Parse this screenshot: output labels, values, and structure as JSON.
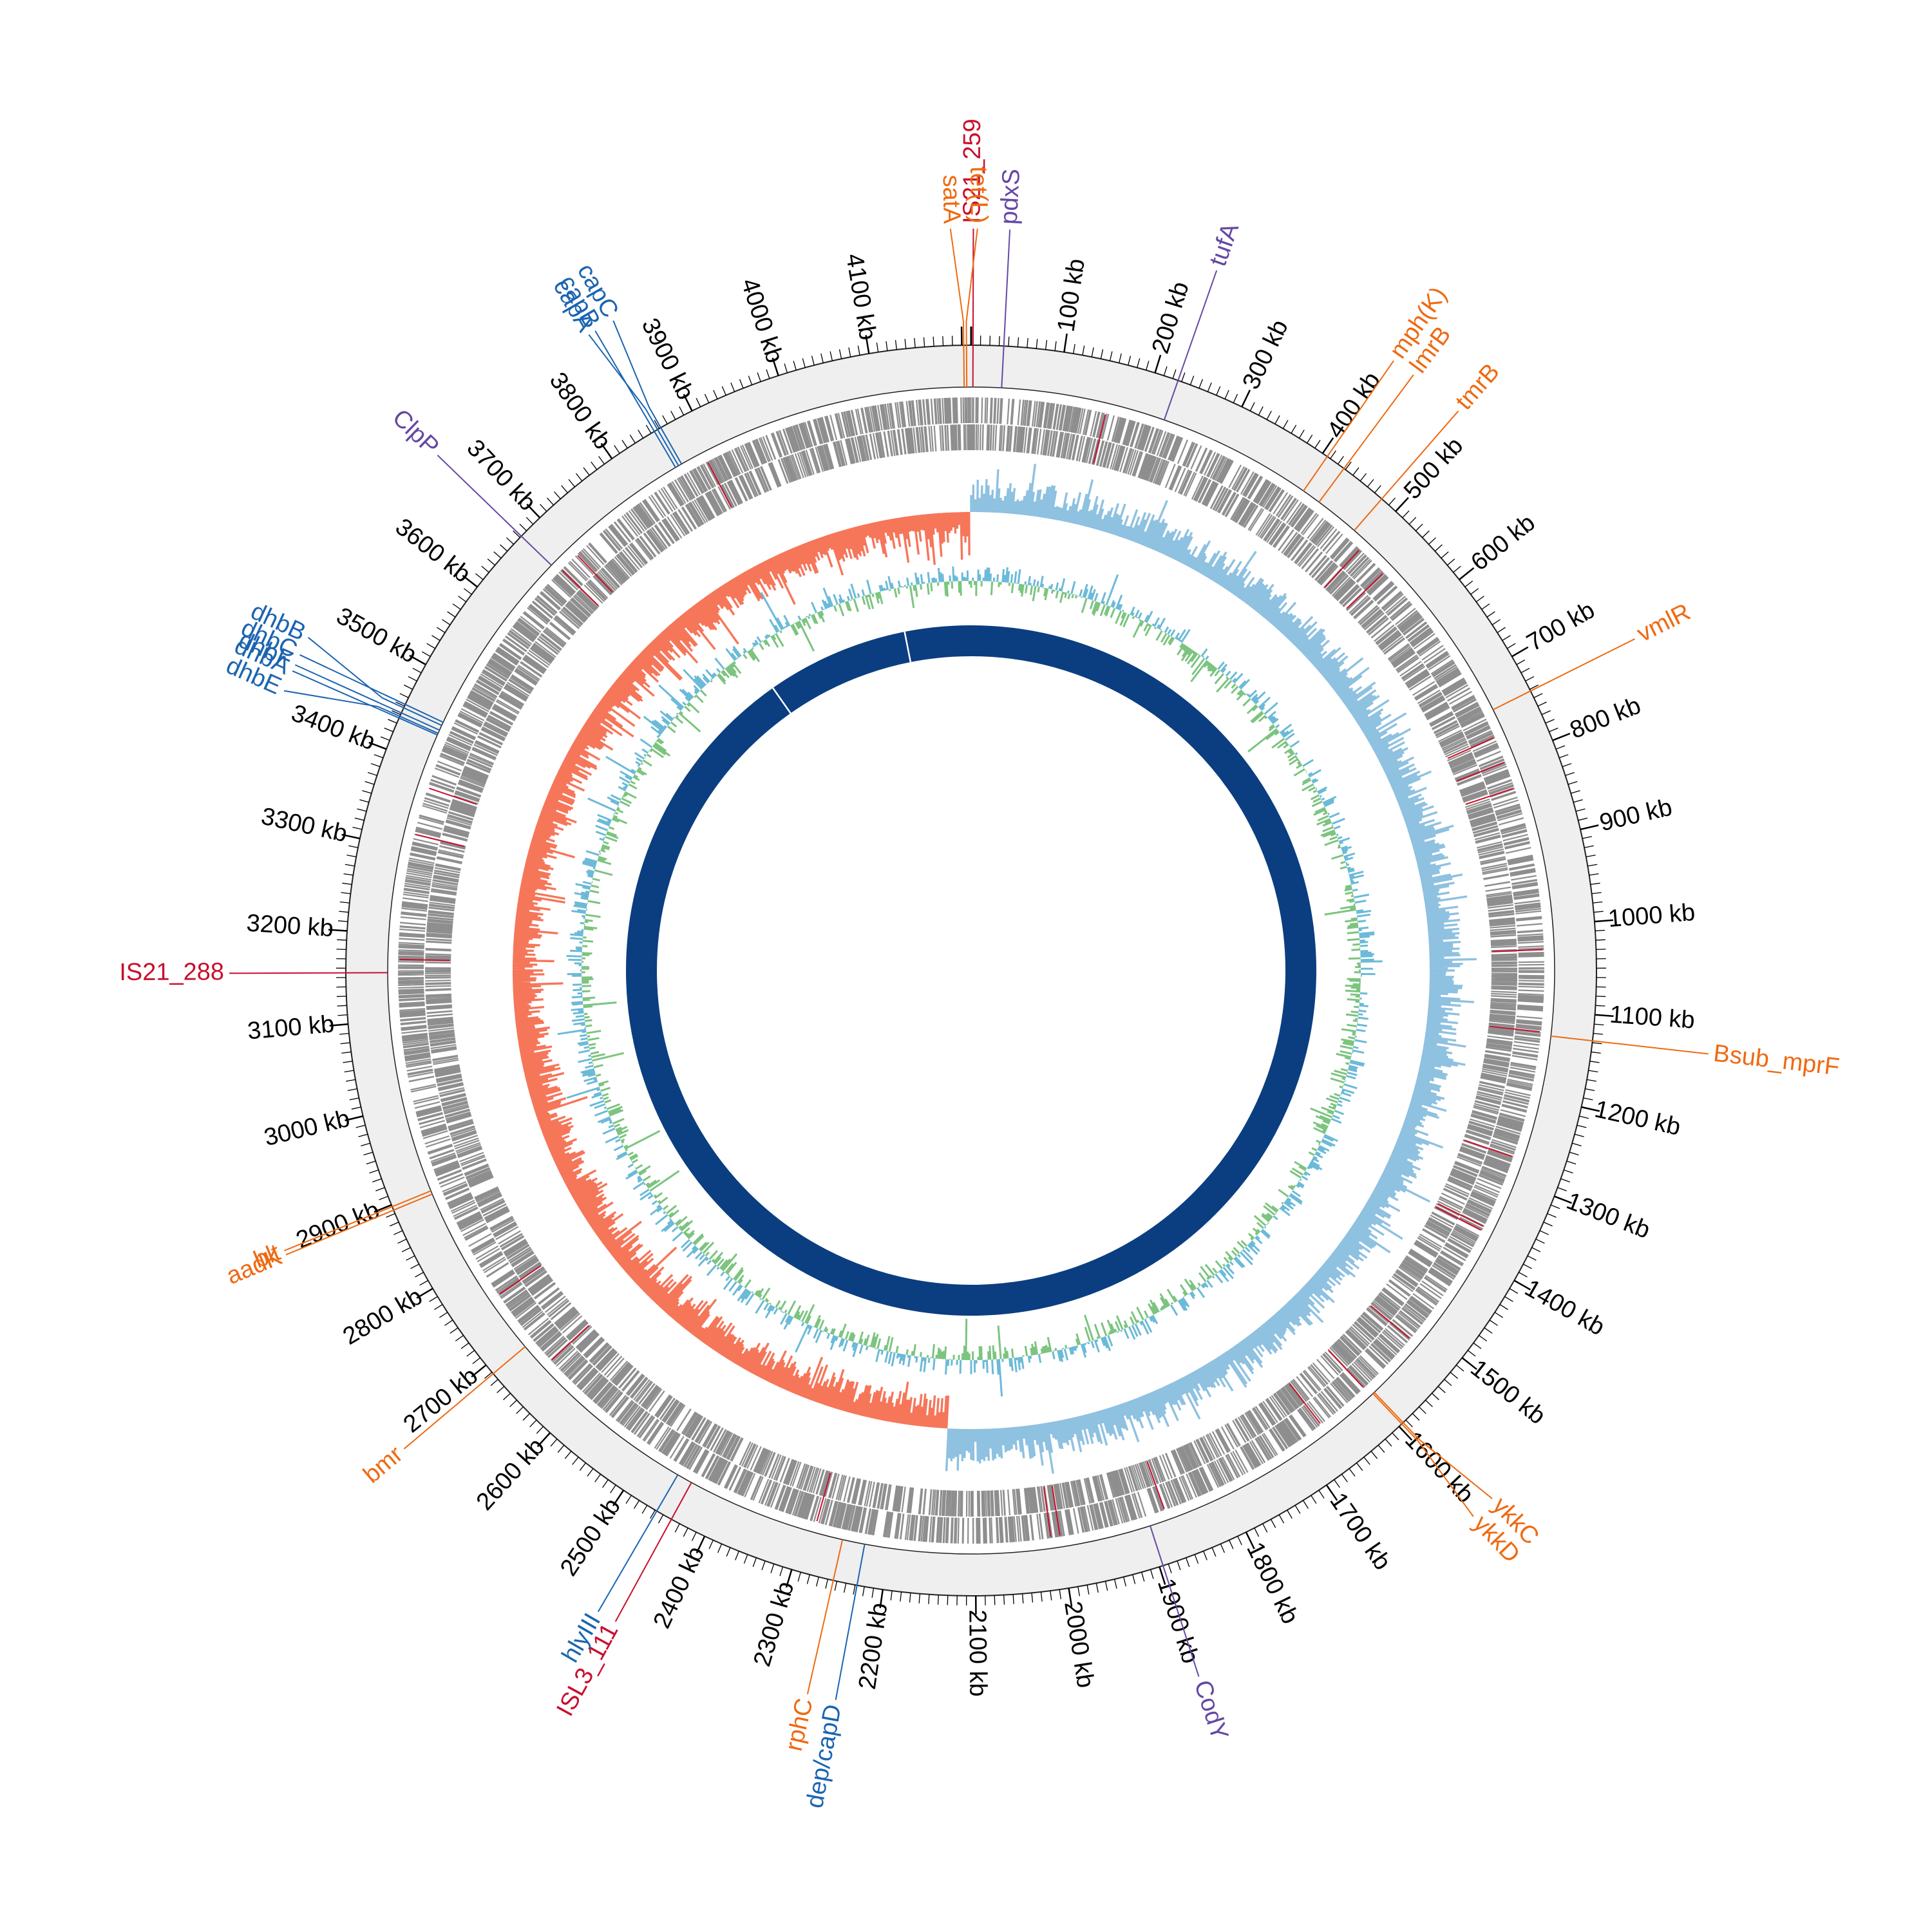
{
  "map": {
    "genome_length_kb": 4210,
    "tick_labels": [
      "100 kb",
      "200 kb",
      "300 kb",
      "400 kb",
      "500 kb",
      "600 kb",
      "700 kb",
      "800 kb",
      "900 kb",
      "1000 kb",
      "1100 kb",
      "1200 kb",
      "1300 kb",
      "1400 kb",
      "1500 kb",
      "1600 kb",
      "1700 kb",
      "1800 kb",
      "1900 kb",
      "2000 kb",
      "2100 kb",
      "2200 kb",
      "2300 kb",
      "2400 kb",
      "2500 kb",
      "2600 kb",
      "2700 kb",
      "2800 kb",
      "2900 kb",
      "3000 kb",
      "3100 kb",
      "3200 kb",
      "3300 kb",
      "3400 kb",
      "3500 kb",
      "3600 kb",
      "3700 kb",
      "3800 kb",
      "3900 kb",
      "4000 kb",
      "4100 kb"
    ],
    "colors": {
      "arg": "#ee6a12",
      "virulence": "#1b64b0",
      "mobile_element": "#c8102e",
      "regulator": "#6548a3",
      "gc_skew_positive": "#8fc1e0",
      "gc_skew_negative": "#f6765a",
      "gc_content_high": "#6cbad8",
      "gc_content_low": "#7cc47f",
      "cds": "#8e8e8e",
      "core_ring": "#0b3e80",
      "backbone": "#efefef"
    },
    "features": [
      {
        "label": "satA",
        "kb": 4202,
        "category": "arg"
      },
      {
        "label": "tet(L)",
        "kb": 4205,
        "category": "arg"
      },
      {
        "label": "IS21_259",
        "kb": 2,
        "category": "mobile_element"
      },
      {
        "label": "pdxS",
        "kb": 35,
        "category": "regulator"
      },
      {
        "label": "tufA",
        "kb": 226,
        "category": "regulator"
      },
      {
        "label": "mph(K)",
        "kb": 406,
        "category": "arg"
      },
      {
        "label": "lmrB",
        "kb": 428,
        "category": "arg"
      },
      {
        "label": "tmrB",
        "kb": 480,
        "category": "arg"
      },
      {
        "label": "vmlR",
        "kb": 742,
        "category": "arg"
      },
      {
        "label": "Bsub_mprF",
        "kb": 1128,
        "category": "arg"
      },
      {
        "label": "ykkC",
        "kb": 1594,
        "category": "arg"
      },
      {
        "label": "ykkD",
        "kb": 1596,
        "category": "arg"
      },
      {
        "label": "CodY",
        "kb": 1896,
        "category": "regulator"
      },
      {
        "label": "dep/capD",
        "kb": 2228,
        "category": "virulence"
      },
      {
        "label": "rphC",
        "kb": 2254,
        "category": "arg"
      },
      {
        "label": "ISL3_111",
        "kb": 2440,
        "category": "mobile_element"
      },
      {
        "label": "hlyIII",
        "kb": 2458,
        "category": "virulence"
      },
      {
        "label": "bmr",
        "kb": 2688,
        "category": "arg"
      },
      {
        "label": "aadK",
        "kb": 2894,
        "category": "arg"
      },
      {
        "label": "blt",
        "kb": 2898,
        "category": "arg"
      },
      {
        "label": "IS21_288",
        "kb": 3155,
        "category": "mobile_element"
      },
      {
        "label": "dhbA",
        "kb": 3436,
        "category": "virulence"
      },
      {
        "label": "dhbE",
        "kb": 3438,
        "category": "virulence"
      },
      {
        "label": "dhbF",
        "kb": 3442,
        "category": "virulence"
      },
      {
        "label": "dhbB",
        "kb": 3448,
        "category": "virulence"
      },
      {
        "label": "dhbC",
        "kb": 3452,
        "category": "virulence"
      },
      {
        "label": "ClpP",
        "kb": 3672,
        "category": "regulator"
      },
      {
        "label": "capB",
        "kb": 3854,
        "category": "virulence"
      },
      {
        "label": "capA",
        "kb": 3858,
        "category": "virulence"
      },
      {
        "label": "capC",
        "kb": 3862,
        "category": "virulence"
      }
    ]
  }
}
